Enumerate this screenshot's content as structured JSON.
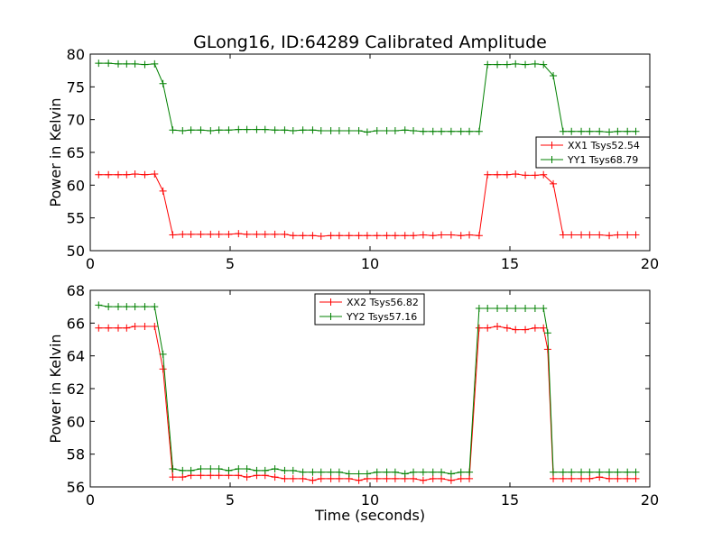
{
  "title": "GLong16, ID:64289 Calibrated Amplitude",
  "chart_data": [
    {
      "type": "line",
      "title": "GLong16, ID:64289 Calibrated Amplitude",
      "xlabel": "",
      "ylabel": "Power in Kelvin",
      "xlim": [
        0,
        20
      ],
      "ylim": [
        50,
        80
      ],
      "xticks": [
        "0",
        "5",
        "10",
        "15",
        "20"
      ],
      "yticks": [
        "50",
        "55",
        "60",
        "65",
        "70",
        "75",
        "80"
      ],
      "legend_position": "center-right",
      "grid": false,
      "marker": "+",
      "x": [
        0.3,
        0.65,
        1.0,
        1.3,
        1.6,
        1.95,
        2.3,
        2.6,
        2.95,
        3.3,
        3.6,
        3.95,
        4.3,
        4.6,
        4.95,
        5.3,
        5.6,
        5.95,
        6.25,
        6.6,
        6.95,
        7.25,
        7.6,
        7.95,
        8.25,
        8.6,
        8.9,
        9.25,
        9.6,
        9.9,
        10.25,
        10.6,
        10.9,
        11.25,
        11.55,
        11.9,
        12.25,
        12.55,
        12.9,
        13.25,
        13.55,
        13.9,
        14.2,
        14.55,
        14.9,
        15.2,
        15.55,
        15.9,
        16.2,
        16.55,
        16.9,
        17.2,
        17.55,
        17.85,
        18.2,
        18.55,
        18.85,
        19.2,
        19.5
      ],
      "series": [
        {
          "name": "XX1 Tsys52.54",
          "color": "#ff0000",
          "values": [
            61.6,
            61.6,
            61.6,
            61.6,
            61.7,
            61.6,
            61.7,
            59.1,
            52.4,
            52.5,
            52.5,
            52.5,
            52.5,
            52.5,
            52.5,
            52.6,
            52.5,
            52.5,
            52.5,
            52.5,
            52.5,
            52.3,
            52.3,
            52.3,
            52.2,
            52.3,
            52.3,
            52.3,
            52.3,
            52.3,
            52.3,
            52.3,
            52.3,
            52.3,
            52.3,
            52.4,
            52.3,
            52.4,
            52.4,
            52.3,
            52.4,
            52.3,
            61.6,
            61.6,
            61.6,
            61.7,
            61.5,
            61.5,
            61.6,
            60.2,
            52.4,
            52.4,
            52.4,
            52.4,
            52.4,
            52.3,
            52.4,
            52.4,
            52.4
          ]
        },
        {
          "name": "YY1 Tsys68.79",
          "color": "#008000",
          "values": [
            78.6,
            78.6,
            78.5,
            78.5,
            78.5,
            78.4,
            78.5,
            75.5,
            68.4,
            68.3,
            68.4,
            68.4,
            68.3,
            68.4,
            68.4,
            68.5,
            68.5,
            68.5,
            68.5,
            68.4,
            68.4,
            68.3,
            68.4,
            68.4,
            68.3,
            68.3,
            68.3,
            68.3,
            68.3,
            68.1,
            68.3,
            68.3,
            68.3,
            68.4,
            68.3,
            68.2,
            68.2,
            68.2,
            68.2,
            68.2,
            68.2,
            68.2,
            78.4,
            78.4,
            78.4,
            78.5,
            78.4,
            78.5,
            78.4,
            76.7,
            68.2,
            68.2,
            68.2,
            68.2,
            68.2,
            68.1,
            68.2,
            68.2,
            68.2
          ]
        }
      ]
    },
    {
      "type": "line",
      "title": "",
      "xlabel": "Time (seconds)",
      "ylabel": "Power in Kelvin",
      "xlim": [
        0,
        20
      ],
      "ylim": [
        56,
        68
      ],
      "xticks": [
        "0",
        "5",
        "10",
        "15",
        "20"
      ],
      "yticks": [
        "56",
        "58",
        "60",
        "62",
        "64",
        "66",
        "68"
      ],
      "legend_position": "upper-center",
      "grid": false,
      "marker": "+",
      "x": [
        0.3,
        0.65,
        1.0,
        1.3,
        1.6,
        1.95,
        2.3,
        2.6,
        2.75,
        2.95,
        3.3,
        3.6,
        3.95,
        4.3,
        4.6,
        4.95,
        5.3,
        5.6,
        5.95,
        6.25,
        6.6,
        6.95,
        7.25,
        7.6,
        7.95,
        8.25,
        8.6,
        8.9,
        9.25,
        9.6,
        9.9,
        10.25,
        10.6,
        10.9,
        11.25,
        11.55,
        11.9,
        12.25,
        12.55,
        12.9,
        13.25,
        13.55,
        13.9,
        14.2,
        14.55,
        14.9,
        15.2,
        15.55,
        15.9,
        16.2,
        16.35,
        16.55,
        16.9,
        17.2,
        17.55,
        17.85,
        18.2,
        18.55,
        18.85,
        19.2,
        19.5
      ],
      "series": [
        {
          "name": "XX2 Tsys56.82",
          "color": "#ff0000",
          "values": [
            65.7,
            65.7,
            65.7,
            65.7,
            65.8,
            65.8,
            65.8,
            63.2,
            null,
            56.6,
            56.6,
            56.7,
            56.7,
            56.7,
            56.7,
            56.7,
            56.7,
            56.6,
            56.7,
            56.7,
            56.6,
            56.5,
            56.5,
            56.5,
            56.4,
            56.5,
            56.5,
            56.5,
            56.5,
            56.4,
            56.5,
            56.5,
            56.5,
            56.5,
            56.5,
            56.5,
            56.4,
            56.5,
            56.5,
            56.4,
            56.5,
            56.5,
            65.7,
            65.7,
            65.8,
            65.7,
            65.6,
            65.6,
            65.7,
            65.7,
            64.4,
            56.5,
            56.5,
            56.5,
            56.5,
            56.5,
            56.6,
            56.5,
            56.5,
            56.5,
            56.5
          ],
          "note_on_nulls": "x points where this series has no marker"
        },
        {
          "name": "YY2 Tsys57.16",
          "color": "#008000",
          "values": [
            67.1,
            67.0,
            67.0,
            67.0,
            67.0,
            67.0,
            67.0,
            64.1,
            null,
            57.1,
            57.0,
            57.0,
            57.1,
            57.1,
            57.1,
            57.0,
            57.1,
            57.1,
            57.0,
            57.0,
            57.1,
            57.0,
            57.0,
            56.9,
            56.9,
            56.9,
            56.9,
            56.9,
            56.8,
            56.8,
            56.8,
            56.9,
            56.9,
            56.9,
            56.8,
            56.9,
            56.9,
            56.9,
            56.9,
            56.8,
            56.9,
            56.9,
            66.9,
            66.9,
            66.9,
            66.9,
            66.9,
            66.9,
            66.9,
            66.9,
            65.4,
            56.9,
            56.9,
            56.9,
            56.9,
            56.9,
            56.9,
            56.9,
            56.9,
            56.9,
            56.9
          ]
        }
      ]
    }
  ]
}
